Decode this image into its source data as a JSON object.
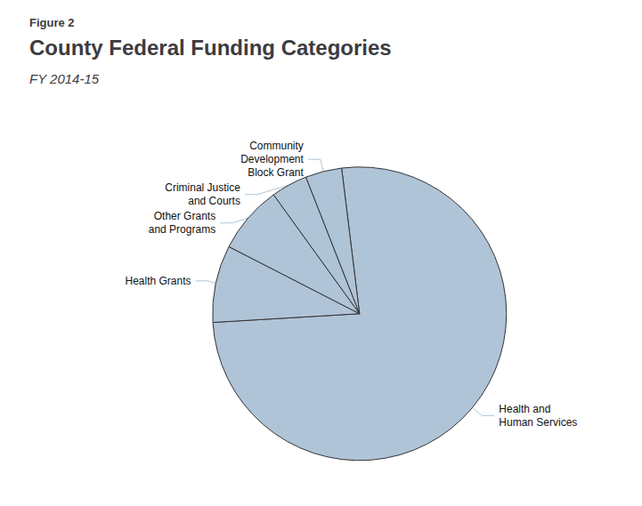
{
  "chart_data": {
    "type": "pie",
    "title": "County Federal Funding Categories",
    "subtitle": "FY 2014-15",
    "annotations": [
      "Figure 2"
    ],
    "categories": [
      "Health and\nHuman Services",
      "Health Grants",
      "Other Grants\nand Programs",
      "Criminal Justice\nand Courts",
      "Community\nDevelopment\nBlock Grant"
    ],
    "values": [
      76.0,
      8.5,
      7.5,
      4.0,
      4.0
    ],
    "color": "#b0c4d8"
  }
}
